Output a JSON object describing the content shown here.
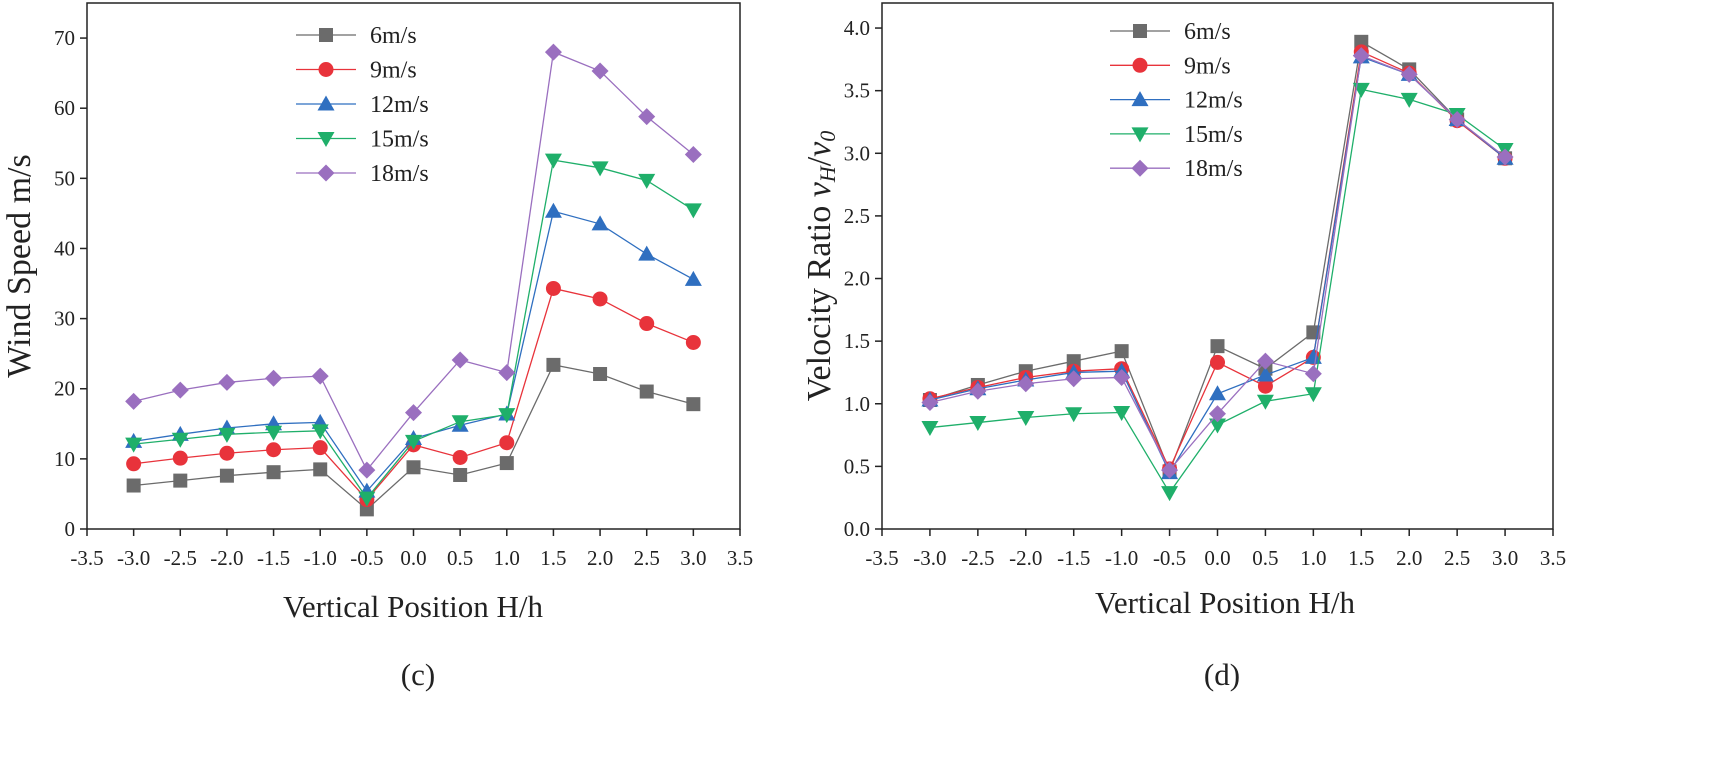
{
  "colors": {
    "6m/s": "#6b6b6b",
    "9m/s": "#e8333b",
    "12m/s": "#2f6fc0",
    "15m/s": "#1faf6a",
    "18m/s": "#9a6fbf"
  },
  "chart_data": [
    {
      "type": "line",
      "panel_label": "(c)",
      "title": "",
      "xlabel": "Vertical Position H/h",
      "ylabel": "Wind Speed m/s",
      "xlim": [
        -3.5,
        3.5
      ],
      "ylim": [
        0,
        75
      ],
      "xticks": [
        -3.5,
        -3.0,
        -2.5,
        -2.0,
        -1.5,
        -1.0,
        -0.5,
        0.0,
        0.5,
        1.0,
        1.5,
        2.0,
        2.5,
        3.0,
        3.5
      ],
      "xtick_labels": [
        "-3.5",
        "-3.0",
        "-2.5",
        "-2.0",
        "-1.5",
        "-1.0",
        "-0.5",
        "0.0",
        "0.5",
        "1.0",
        "1.5",
        "2.0",
        "2.5",
        "3.0",
        "3.5"
      ],
      "yticks": [
        0,
        10,
        20,
        30,
        40,
        50,
        60,
        70
      ],
      "ytick_labels": [
        "0",
        "10",
        "20",
        "30",
        "40",
        "50",
        "60",
        "70"
      ],
      "legend_position": "top-center",
      "x": [
        -3.0,
        -2.5,
        -2.0,
        -1.5,
        -1.0,
        -0.5,
        0.0,
        0.5,
        1.0,
        1.5,
        2.0,
        2.5,
        3.0
      ],
      "series": [
        {
          "name": "6m/s",
          "marker": "square",
          "values": [
            6.2,
            6.9,
            7.6,
            8.1,
            8.5,
            2.8,
            8.8,
            7.7,
            9.4,
            23.4,
            22.1,
            19.6,
            17.8
          ]
        },
        {
          "name": "9m/s",
          "marker": "circle",
          "values": [
            9.3,
            10.1,
            10.8,
            11.3,
            11.6,
            4.2,
            12.0,
            10.2,
            12.3,
            34.3,
            32.8,
            29.3,
            26.6
          ]
        },
        {
          "name": "12m/s",
          "marker": "triangle-up",
          "values": [
            12.5,
            13.5,
            14.4,
            15.0,
            15.2,
            5.4,
            12.9,
            14.8,
            16.4,
            45.3,
            43.5,
            39.2,
            35.6
          ]
        },
        {
          "name": "15m/s",
          "marker": "triangle-down",
          "values": [
            12.1,
            12.8,
            13.5,
            13.8,
            14.0,
            4.4,
            12.5,
            15.3,
            16.3,
            52.6,
            51.5,
            49.7,
            45.5
          ]
        },
        {
          "name": "18m/s",
          "marker": "diamond",
          "values": [
            18.2,
            19.8,
            20.9,
            21.5,
            21.8,
            8.4,
            16.6,
            24.1,
            22.3,
            68.0,
            65.3,
            58.8,
            53.4
          ]
        }
      ]
    },
    {
      "type": "line",
      "panel_label": "(d)",
      "title": "",
      "xlabel": "Vertical Position H/h",
      "ylabel_prefix": "Velocity Ratio ",
      "ylabel_v1": "v",
      "ylabel_sub1": "H",
      "ylabel_slash": "/",
      "ylabel_v2": "v",
      "ylabel_sub2": "0",
      "xlim": [
        -3.5,
        3.5
      ],
      "ylim": [
        0,
        4.2
      ],
      "xticks": [
        -3.5,
        -3.0,
        -2.5,
        -2.0,
        -1.5,
        -1.0,
        -0.5,
        0.0,
        0.5,
        1.0,
        1.5,
        2.0,
        2.5,
        3.0,
        3.5
      ],
      "xtick_labels": [
        "-3.5",
        "-3.0",
        "-2.5",
        "-2.0",
        "-1.5",
        "-1.0",
        "-0.5",
        "0.0",
        "0.5",
        "1.0",
        "1.5",
        "2.0",
        "2.5",
        "3.0",
        "3.5"
      ],
      "yticks": [
        0.0,
        0.5,
        1.0,
        1.5,
        2.0,
        2.5,
        3.0,
        3.5,
        4.0
      ],
      "ytick_labels": [
        "0.0",
        "0.5",
        "1.0",
        "1.5",
        "2.0",
        "2.5",
        "3.0",
        "3.5",
        "4.0"
      ],
      "legend_position": "top-center",
      "x": [
        -3.0,
        -2.5,
        -2.0,
        -1.5,
        -1.0,
        -0.5,
        0.0,
        0.5,
        1.0,
        1.5,
        2.0,
        2.5,
        3.0
      ],
      "series": [
        {
          "name": "6m/s",
          "marker": "square",
          "values": [
            1.03,
            1.15,
            1.26,
            1.34,
            1.42,
            0.46,
            1.46,
            1.28,
            1.57,
            3.89,
            3.67,
            3.27,
            2.96
          ]
        },
        {
          "name": "9m/s",
          "marker": "circle",
          "values": [
            1.04,
            1.13,
            1.21,
            1.26,
            1.28,
            0.48,
            1.33,
            1.14,
            1.37,
            3.81,
            3.64,
            3.26,
            2.96
          ]
        },
        {
          "name": "12m/s",
          "marker": "triangle-up",
          "values": [
            1.03,
            1.12,
            1.19,
            1.25,
            1.26,
            0.45,
            1.08,
            1.23,
            1.37,
            3.77,
            3.63,
            3.27,
            2.96
          ]
        },
        {
          "name": "15m/s",
          "marker": "triangle-down",
          "values": [
            0.81,
            0.85,
            0.89,
            0.92,
            0.93,
            0.29,
            0.83,
            1.02,
            1.08,
            3.51,
            3.43,
            3.31,
            3.03
          ]
        },
        {
          "name": "18m/s",
          "marker": "diamond",
          "values": [
            1.01,
            1.1,
            1.16,
            1.2,
            1.21,
            0.47,
            0.92,
            1.34,
            1.24,
            3.78,
            3.63,
            3.27,
            2.97
          ]
        }
      ]
    }
  ]
}
